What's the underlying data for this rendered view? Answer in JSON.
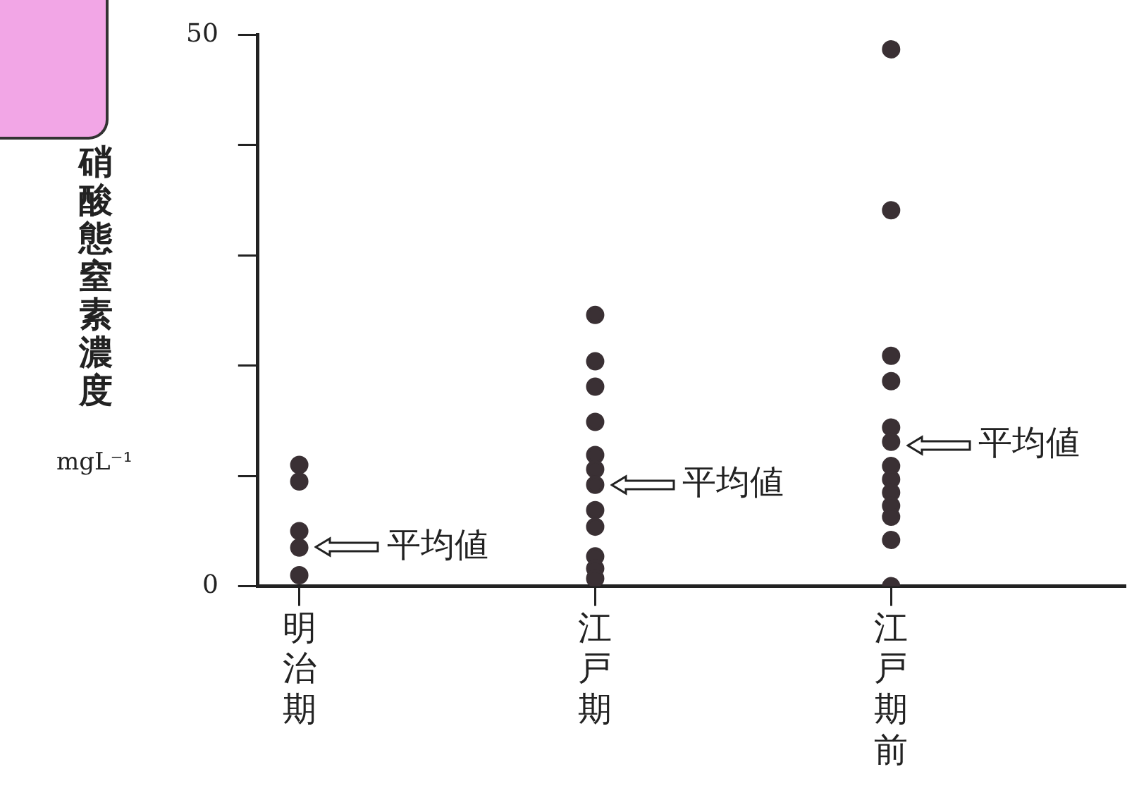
{
  "chart_data": {
    "type": "scatter",
    "ylabel": "硝酸態窒素濃度\nmgL⁻¹",
    "categories": [
      "明治期",
      "江戸期",
      "江戸期前"
    ],
    "series": [
      {
        "type": "scatter",
        "color": "#3a3034",
        "x": [
          "明治期",
          "明治期",
          "明治期",
          "明治期",
          "明治期",
          "江戸期",
          "江戸期",
          "江戸期",
          "江戸期",
          "江戸期",
          "江戸期",
          "江戸期",
          "江戸期",
          "江戸期",
          "江戸期",
          "江戸期",
          "江戸期",
          "江戸期前",
          "江戸期前",
          "江戸期前",
          "江戸期前",
          "江戸期前",
          "江戸期前",
          "江戸期前",
          "江戸期前",
          "江戸期前",
          "江戸期前",
          "江戸期前",
          "江戸期前",
          "江戸期前"
        ],
        "values": [
          11,
          9.5,
          5,
          3.5,
          1,
          24.6,
          20.4,
          18.1,
          14.9,
          11.9,
          10.6,
          9.2,
          6.9,
          5.4,
          2.7,
          1.6,
          0.7,
          48.7,
          34.1,
          20.9,
          18.6,
          14.4,
          13.1,
          10.9,
          9.7,
          8.5,
          7.3,
          6.3,
          4.2,
          0
        ]
      }
    ],
    "ylim": [
      0,
      50
    ],
    "yticks": [
      0,
      {
        "value": 10,
        "label": null
      },
      {
        "value": 20,
        "label": null
      },
      {
        "value": 30,
        "label": null
      },
      {
        "value": 40,
        "label": null
      },
      50
    ],
    "marker": "circle",
    "grid": false,
    "legend": false,
    "annotations": [
      {
        "text": "平均値",
        "x": "明治期",
        "y": 3.5
      },
      {
        "text": "平均値",
        "x": "江戸期",
        "y": 9.2
      },
      {
        "text": "平均値",
        "x": "江戸期前",
        "y": 12.8
      }
    ]
  }
}
